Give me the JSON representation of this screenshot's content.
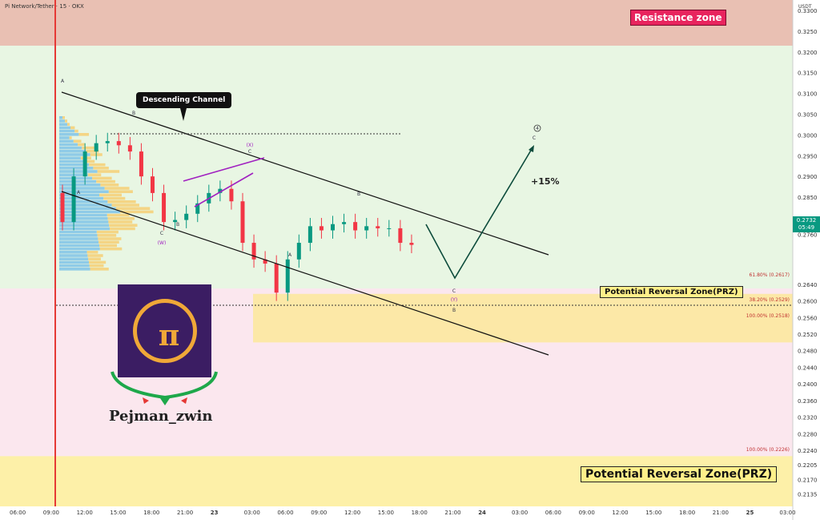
{
  "header": {
    "title": "Pi Network/Tether · 15 · OKX",
    "currency": "USDT"
  },
  "annotations": {
    "resistance_zone": "Resistance zone",
    "prz_small": "Potential Reversal Zone(PRZ)",
    "prz_large": "Potential Reversal Zone(PRZ)",
    "channel_callout": "Descending Channel",
    "target_pct": "+15%",
    "brand": "Pejman_zwin",
    "logo_symbol": "π",
    "fib_618": "61.80% (0.2617)",
    "fib_382": "38.20% (0.2529)",
    "fib_100a": "100.00% (0.2518)",
    "fib_100b": "100.00% (0.2226)",
    "wave_labels": [
      "A",
      "B",
      "C",
      "(W)",
      "A",
      "B",
      "(X)",
      "C",
      "A",
      "B",
      "C",
      "(Y)",
      "B",
      "C",
      "4"
    ]
  },
  "price_tag": {
    "price": "0.2732",
    "countdown": "05:49"
  },
  "colors": {
    "up": "#089981",
    "down": "#f23645",
    "resistance": "#e8245e",
    "prz": "#fff08a",
    "volume_profile_a": "#7fc3e8",
    "volume_profile_b": "#f5d27a"
  },
  "chart_data": {
    "type": "candlestick",
    "y_axis": {
      "min": 0.2105,
      "max": 0.3325,
      "ticks": [
        "0.3300",
        "0.3250",
        "0.3200",
        "0.3150",
        "0.3100",
        "0.3050",
        "0.3000",
        "0.2950",
        "0.2900",
        "0.2850",
        "0.2800",
        "0.2760",
        "0.2640",
        "0.2600",
        "0.2560",
        "0.2520",
        "0.2480",
        "0.2440",
        "0.2400",
        "0.2360",
        "0.2320",
        "0.2280",
        "0.2240",
        "0.2205",
        "0.2170",
        "0.2135"
      ]
    },
    "x_axis": {
      "ticks": [
        "06:00",
        "09:00",
        "12:00",
        "15:00",
        "18:00",
        "21:00",
        "23",
        "03:00",
        "06:00",
        "09:00",
        "12:00",
        "15:00",
        "18:00",
        "21:00",
        "24",
        "03:00",
        "06:00",
        "09:00",
        "12:00",
        "15:00",
        "18:00",
        "21:00",
        "25",
        "03:00"
      ]
    },
    "resistance_zone": [
      0.3215,
      0.3325
    ],
    "prz_upper": [
      0.25,
      0.2617
    ],
    "prz_lower": [
      0.2105,
      0.2226
    ],
    "channel_top": [
      [
        "09:20",
        0.308
      ],
      [
        "02:30",
        0.266
      ]
    ],
    "channel_bottom": [
      [
        "09:20",
        0.281
      ],
      [
        "02:30",
        0.2415
      ]
    ],
    "projection": [
      [
        0.275,
        0.2595,
        0.293
      ]
    ],
    "series_close": [
      0.279,
      0.29,
      0.296,
      0.298,
      0.2985,
      0.2975,
      0.296,
      0.29,
      0.286,
      0.279,
      0.2795,
      0.281,
      0.2835,
      0.286,
      0.287,
      0.284,
      0.274,
      0.27,
      0.269,
      0.262,
      0.27,
      0.274,
      0.278,
      0.277,
      0.2785,
      0.279,
      0.277,
      0.278,
      0.2775,
      0.2775,
      0.274,
      0.2735
    ]
  }
}
